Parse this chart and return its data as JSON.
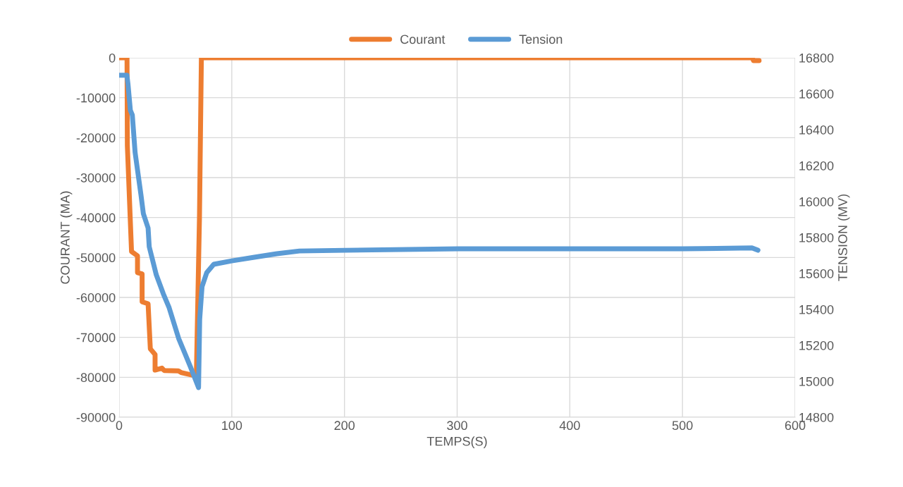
{
  "chart_data": {
    "type": "line",
    "xlabel": "TEMPS(S)",
    "ylabel": "COURANT (MA)",
    "y2label": "TENSION (MV)",
    "xlim": [
      0,
      600
    ],
    "xticks": [
      0,
      100,
      200,
      300,
      400,
      500,
      600
    ],
    "ylim": [
      -90000,
      0
    ],
    "yticks": [
      -90000,
      -80000,
      -70000,
      -60000,
      -50000,
      -40000,
      -30000,
      -20000,
      -10000,
      0
    ],
    "y2lim": [
      14800,
      16800
    ],
    "y2ticks": [
      14800,
      15000,
      15200,
      15400,
      15600,
      15800,
      16000,
      16200,
      16400,
      16600,
      16800
    ],
    "grid": true,
    "legend": "top",
    "marker": "none",
    "line_style": "solid",
    "series": [
      {
        "name": "Courant",
        "color": "#ed7d31",
        "x": [
          0,
          7,
          7.3,
          11,
          16.3,
          16.3,
          20.4,
          20.4,
          25.7,
          27.7,
          31.9,
          31.9,
          38,
          40,
          52.6,
          55,
          67.4,
          68.5,
          71.3,
          73,
          200,
          400,
          562,
          563,
          568
        ],
        "values": [
          0,
          0,
          -22000,
          -48500,
          -49600,
          -53800,
          -54100,
          -61100,
          -61600,
          -72900,
          -74300,
          -78200,
          -77700,
          -78300,
          -78400,
          -78800,
          -79600,
          -80200,
          -40000,
          0,
          0,
          0,
          0,
          -700,
          -700
        ]
      },
      {
        "name": "Tension",
        "color": "#5b9bd5",
        "axis": "y2",
        "x": [
          0,
          6.9,
          7.9,
          10,
          11.7,
          14.2,
          19.4,
          21.5,
          25.7,
          26.7,
          33,
          39.2,
          44.4,
          52.8,
          63.2,
          70.5,
          71.5,
          73.6,
          77.8,
          84,
          100,
          120,
          140,
          160,
          201,
          301,
          400,
          500,
          561.7,
          567
        ],
        "values": [
          16703,
          16703,
          16651,
          16507,
          16482,
          16272,
          16036,
          15933,
          15853,
          15749,
          15592,
          15487,
          15409,
          15239,
          15082,
          14965,
          15345,
          15527,
          15605,
          15651,
          15670,
          15690,
          15710,
          15725,
          15729,
          15737,
          15737,
          15737,
          15742,
          15729
        ]
      }
    ]
  }
}
